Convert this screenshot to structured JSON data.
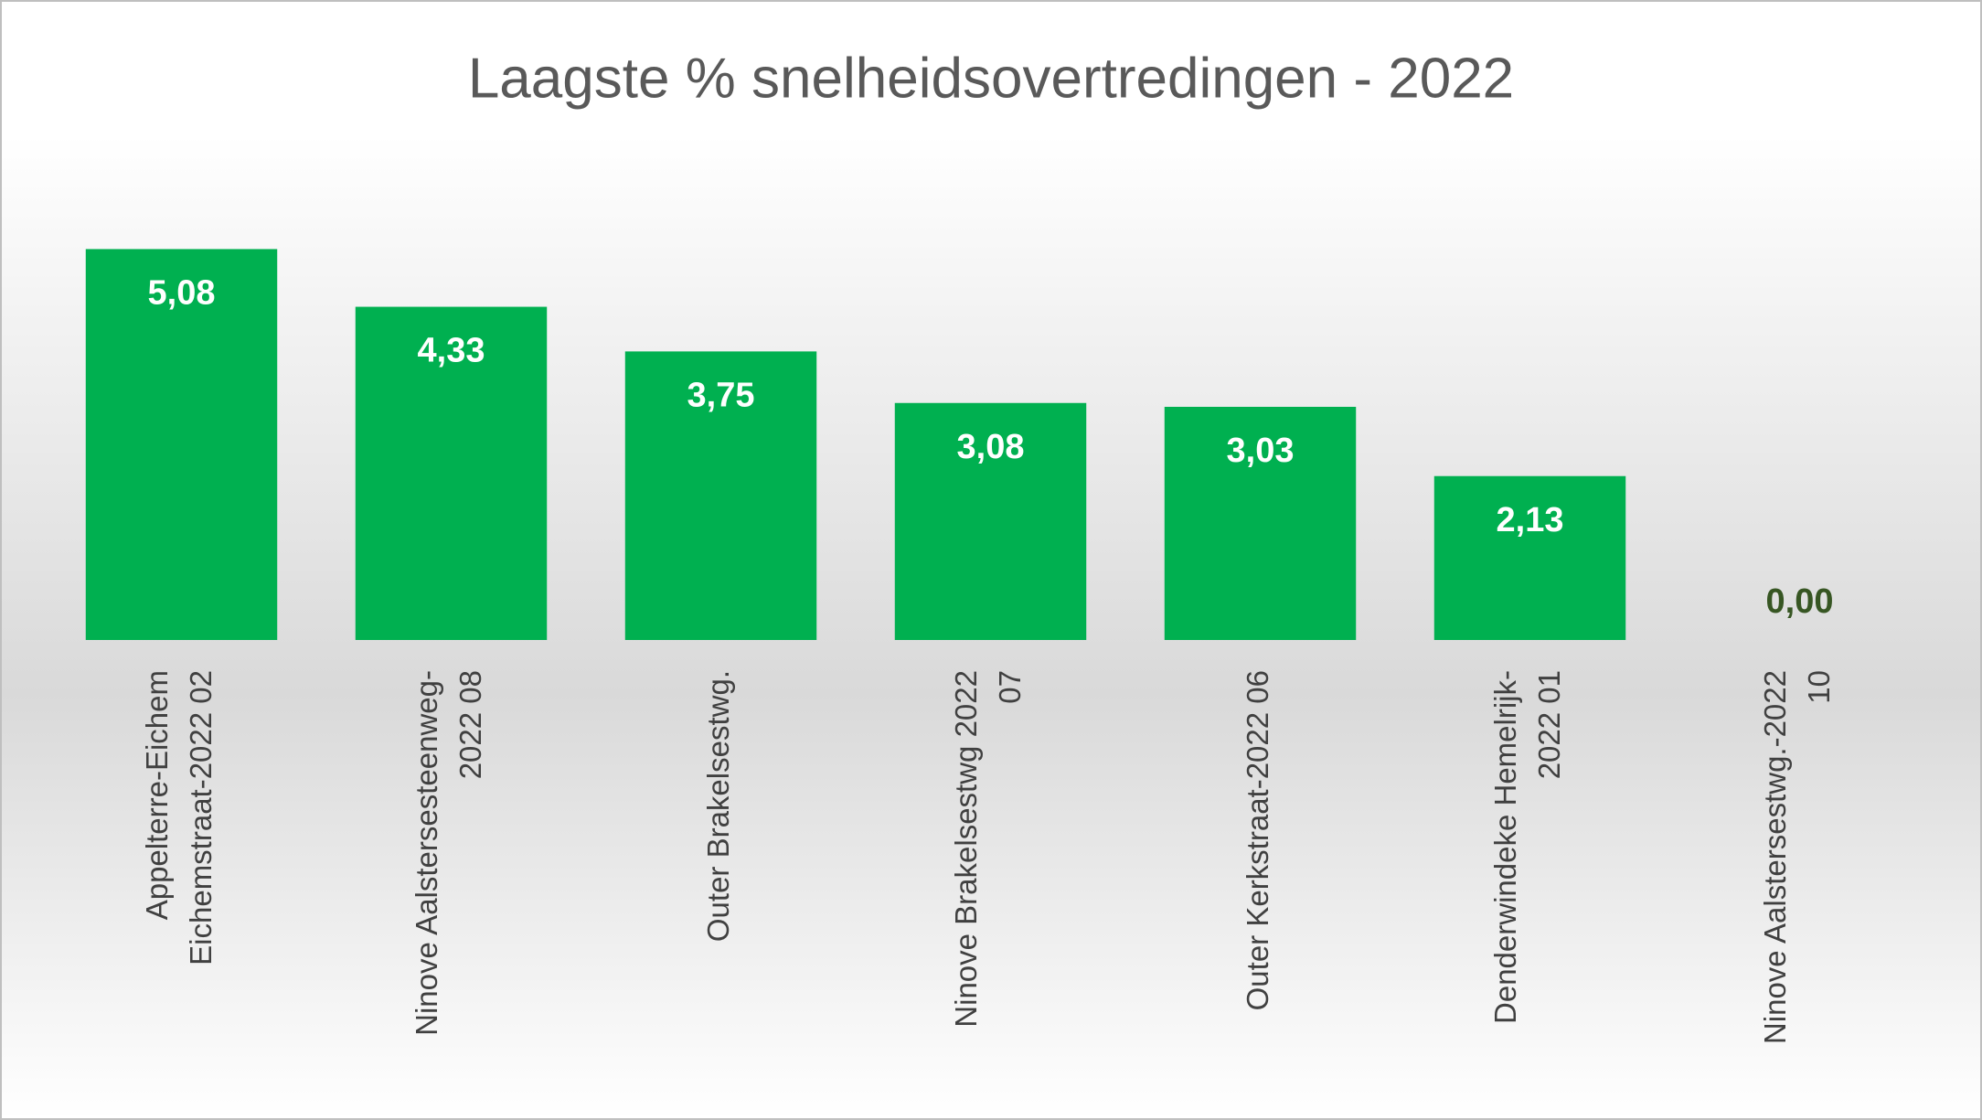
{
  "chart_data": {
    "type": "bar",
    "title": "Laagste % snelheidsovertredingen - 2022",
    "categories": [
      [
        "Appelterre-Eichem",
        "Eichemstraat-2022 02"
      ],
      [
        "Ninove Aalstersesteenweg-",
        "2022 08"
      ],
      [
        "Outer Brakelsestwg."
      ],
      [
        "Ninove Brakelsestwg 2022",
        "07"
      ],
      [
        "Outer Kerkstraat-2022 06"
      ],
      [
        "Denderwindeke Hemelrijk-",
        "2022 01"
      ],
      [
        "Ninove Aalstersestwg.-2022",
        "10"
      ]
    ],
    "values": [
      5.08,
      4.33,
      3.75,
      3.08,
      3.03,
      2.13,
      0.0
    ],
    "value_labels": [
      "5,08",
      "4,33",
      "3,75",
      "3,08",
      "3,03",
      "2,13",
      "0,00"
    ],
    "color": "#00b050",
    "ylim": [
      0,
      6
    ]
  }
}
